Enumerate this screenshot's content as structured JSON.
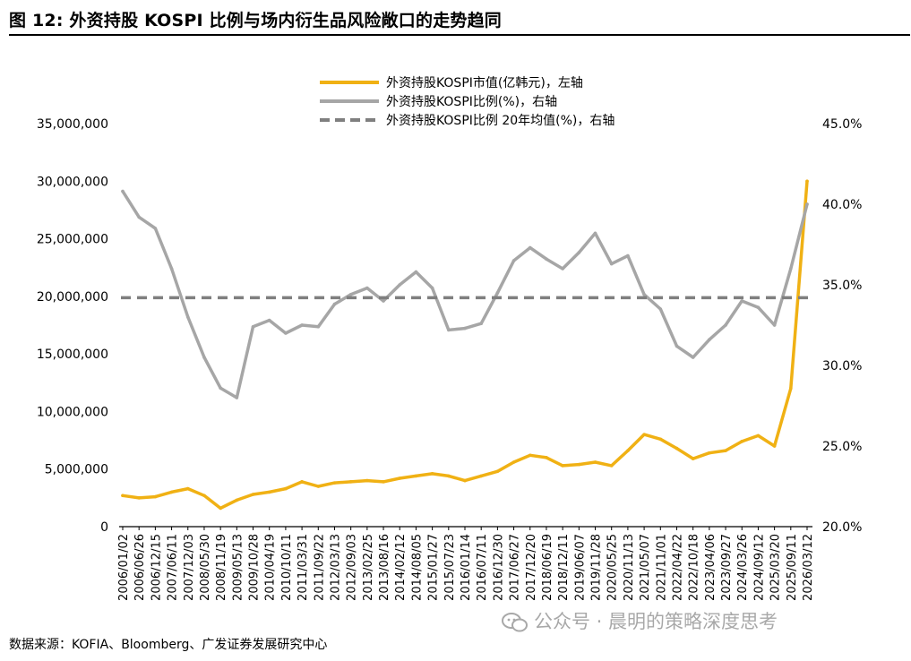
{
  "title": "图 12: 外资持股 KOSPI 比例与场内衍生品风险敞口的走势趋同",
  "source": "数据来源：KOFIA、Bloomberg、广发证券发展研究中心",
  "watermark": "公众号 · 晨明的策略深度思考",
  "chart_data": {
    "type": "line",
    "legend_position": "top-center",
    "grid": false,
    "x_tick_labels": [
      "2006/01/02",
      "2006/06/26",
      "2006/12/15",
      "2007/06/11",
      "2007/12/03",
      "2008/05/30",
      "2008/11/19",
      "2009/05/13",
      "2009/10/28",
      "2010/04/19",
      "2010/10/11",
      "2011/03/31",
      "2011/09/22",
      "2012/03/13",
      "2012/09/03",
      "2013/02/25",
      "2013/08/16",
      "2014/02/12",
      "2014/08/05",
      "2015/01/27",
      "2015/07/23",
      "2016/01/14",
      "2016/07/11",
      "2016/12/30",
      "2017/06/27",
      "2017/12/20",
      "2018/06/19",
      "2018/12/11",
      "2019/06/07",
      "2019/11/28",
      "2020/05/25",
      "2020/11/13",
      "2021/05/07",
      "2021/11/01",
      "2022/04/22",
      "2022/10/18",
      "2023/04/06",
      "2023/09/27",
      "2024/03/26",
      "2024/09/12",
      "2025/03/20",
      "2025/09/11",
      "2026/03/12"
    ],
    "y_left": {
      "range": [
        0,
        35000000
      ],
      "ticks": [
        0,
        5000000,
        10000000,
        15000000,
        20000000,
        25000000,
        30000000,
        35000000
      ],
      "tick_labels": [
        "0",
        "5,000,000",
        "10,000,000",
        "15,000,000",
        "20,000,000",
        "25,000,000",
        "30,000,000",
        "35,000,000"
      ]
    },
    "y_right": {
      "range": [
        20.0,
        45.0
      ],
      "ticks": [
        20,
        25,
        30,
        35,
        40,
        45
      ],
      "tick_labels": [
        "20.0%",
        "25.0%",
        "30.0%",
        "35.0%",
        "40.0%",
        "45.0%"
      ]
    },
    "series": [
      {
        "name": "外资持股KOSPI市值(亿韩元)，左轴",
        "axis": "left",
        "color": "#f0b114",
        "style": "solid",
        "x": [
          "2006/01/02",
          "2006/06/26",
          "2006/12/15",
          "2007/06/11",
          "2007/12/03",
          "2008/05/30",
          "2008/11/19",
          "2009/05/13",
          "2009/10/28",
          "2010/04/19",
          "2010/10/11",
          "2011/03/31",
          "2011/09/22",
          "2012/03/13",
          "2012/09/03",
          "2013/02/25",
          "2013/08/16",
          "2014/02/12",
          "2014/08/05",
          "2015/01/27",
          "2015/07/23",
          "2016/01/14",
          "2016/07/11",
          "2016/12/30",
          "2017/06/27",
          "2017/12/20",
          "2018/06/19",
          "2018/12/11",
          "2019/06/07",
          "2019/11/28",
          "2020/05/25",
          "2020/11/13",
          "2021/05/07",
          "2021/11/01",
          "2022/04/22",
          "2022/10/18",
          "2023/04/06",
          "2023/09/27",
          "2024/03/26",
          "2024/09/12",
          "2025/03/20",
          "2025/09/11",
          "2026/03/12"
        ],
        "values": [
          2700000,
          2500000,
          2600000,
          3000000,
          3300000,
          2700000,
          1600000,
          2300000,
          2800000,
          3000000,
          3300000,
          3900000,
          3500000,
          3800000,
          3900000,
          4000000,
          3900000,
          4200000,
          4400000,
          4600000,
          4400000,
          4000000,
          4400000,
          4800000,
          5600000,
          6200000,
          6000000,
          5300000,
          5400000,
          5600000,
          5300000,
          6600000,
          8000000,
          7600000,
          6800000,
          5900000,
          6400000,
          6600000,
          7400000,
          7900000,
          7000000,
          12000000,
          30000000
        ]
      },
      {
        "name": "外资持股KOSPI比例(%)，右轴",
        "axis": "right",
        "color": "#a6a6a6",
        "style": "solid",
        "x": [
          "2006/01/02",
          "2006/06/26",
          "2006/12/15",
          "2007/06/11",
          "2007/12/03",
          "2008/05/30",
          "2008/11/19",
          "2009/05/13",
          "2009/10/28",
          "2010/04/19",
          "2010/10/11",
          "2011/03/31",
          "2011/09/22",
          "2012/03/13",
          "2012/09/03",
          "2013/02/25",
          "2013/08/16",
          "2014/02/12",
          "2014/08/05",
          "2015/01/27",
          "2015/07/23",
          "2016/01/14",
          "2016/07/11",
          "2016/12/30",
          "2017/06/27",
          "2017/12/20",
          "2018/06/19",
          "2018/12/11",
          "2019/06/07",
          "2019/11/28",
          "2020/05/25",
          "2020/11/13",
          "2021/05/07",
          "2021/11/01",
          "2022/04/22",
          "2022/10/18",
          "2023/04/06",
          "2023/09/27",
          "2024/03/26",
          "2024/09/12",
          "2025/03/20",
          "2025/09/11",
          "2026/03/12"
        ],
        "values": [
          40.8,
          39.2,
          38.5,
          36.0,
          33.0,
          30.5,
          28.6,
          28.0,
          32.4,
          32.8,
          32.0,
          32.5,
          32.4,
          33.8,
          34.4,
          34.8,
          34.0,
          35.0,
          35.8,
          34.8,
          32.2,
          32.3,
          32.6,
          34.5,
          36.5,
          37.3,
          36.6,
          36.0,
          37.0,
          38.2,
          36.3,
          36.8,
          34.4,
          33.5,
          31.2,
          30.5,
          31.6,
          32.5,
          34.0,
          33.6,
          32.5,
          36.0,
          40.0
        ]
      },
      {
        "name": "外资持股KOSPI比例 20年均值(%)，右轴",
        "axis": "right",
        "color": "#7f7f7f",
        "style": "dashed",
        "values": [
          34.2
        ]
      }
    ]
  }
}
